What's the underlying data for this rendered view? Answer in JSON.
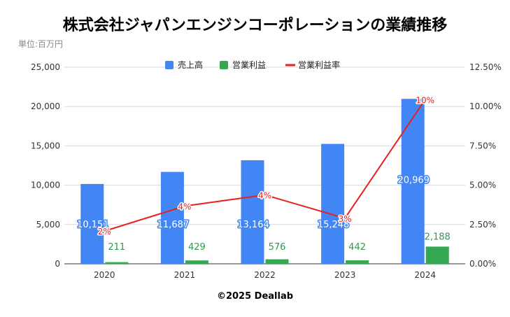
{
  "chart_data": {
    "type": "bar",
    "title": "株式会社ジャパンエンジンコーポレーションの業績推移",
    "unit_note": "単位:百万円",
    "categories": [
      "2020",
      "2021",
      "2022",
      "2023",
      "2024"
    ],
    "series": [
      {
        "name": "売上高",
        "kind": "bar",
        "axis": "left",
        "color": "#4285f4",
        "values": [
          10151,
          11687,
          13164,
          15248,
          20969
        ],
        "labels": [
          "10,151",
          "11,687",
          "13,164",
          "15,248",
          "20,969"
        ]
      },
      {
        "name": "営業利益",
        "kind": "bar",
        "axis": "left",
        "color": "#34a853",
        "values": [
          211,
          429,
          576,
          442,
          2188
        ],
        "labels": [
          "211",
          "429",
          "576",
          "442",
          "2,188"
        ]
      },
      {
        "name": "営業利益率",
        "kind": "line",
        "axis": "right",
        "color": "#e8201e",
        "values": [
          2.08,
          3.67,
          4.38,
          2.9,
          10.43
        ],
        "labels": [
          "2%",
          "4%",
          "4%",
          "3%",
          "10%"
        ]
      }
    ],
    "y_left": {
      "ylim": [
        0,
        25000
      ],
      "ticks": [
        "0",
        "5,000",
        "10,000",
        "15,000",
        "20,000",
        "25,000"
      ]
    },
    "y_right": {
      "ylim": [
        0,
        12.5
      ],
      "ticks": [
        "0.00%",
        "2.50%",
        "5.00%",
        "7.50%",
        "10.00%",
        "12.50%"
      ]
    },
    "grid": true,
    "legend_position": "top-center",
    "footer": "©2025 Deallab"
  }
}
